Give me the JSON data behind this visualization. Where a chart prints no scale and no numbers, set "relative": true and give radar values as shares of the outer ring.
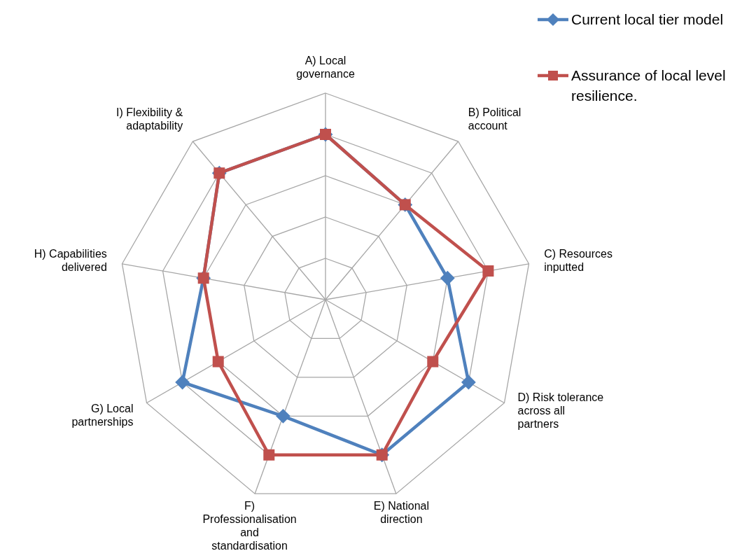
{
  "chart_data": {
    "type": "radar",
    "relative": true,
    "grid": true,
    "legend": "top right",
    "categories": [
      "A) Local governance",
      "B) Political account",
      "C) Resources inputted",
      "D) Risk tolerance across all partners",
      "E) National direction",
      "F) Professionalisation and standardisation",
      "G) Local partnerships",
      "H) Capabilities delivered",
      "I) Flexibility & adaptability"
    ],
    "series": [
      {
        "name": "Current local tier model",
        "color": "#4f81bd",
        "marker": "diamond",
        "values": [
          0.8,
          0.6,
          0.6,
          0.8,
          0.8,
          0.6,
          0.8,
          0.6,
          0.8
        ]
      },
      {
        "name": "Assurance of local level resilience.",
        "color": "#c0504d",
        "marker": "square",
        "values": [
          0.8,
          0.6,
          0.8,
          0.6,
          0.8,
          0.8,
          0.6,
          0.6,
          0.8
        ]
      }
    ]
  }
}
